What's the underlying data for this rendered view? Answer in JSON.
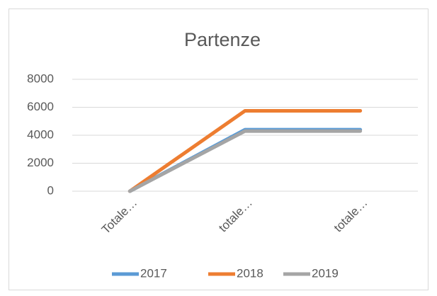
{
  "chart_data": {
    "type": "line",
    "title": "Partenze",
    "categories": [
      "Totale…",
      "totale…",
      "totale…"
    ],
    "series": [
      {
        "name": "2017",
        "color": "#5b9bd5",
        "values": [
          0,
          4400,
          4400
        ]
      },
      {
        "name": "2018",
        "color": "#ed7d31",
        "values": [
          0,
          5750,
          5750
        ]
      },
      {
        "name": "2019",
        "color": "#a5a5a5",
        "values": [
          0,
          4300,
          4300
        ]
      }
    ],
    "ylim": [
      0,
      8000
    ],
    "yticks": [
      0,
      2000,
      4000,
      6000,
      8000
    ],
    "grid": true,
    "legend": "bottom"
  }
}
